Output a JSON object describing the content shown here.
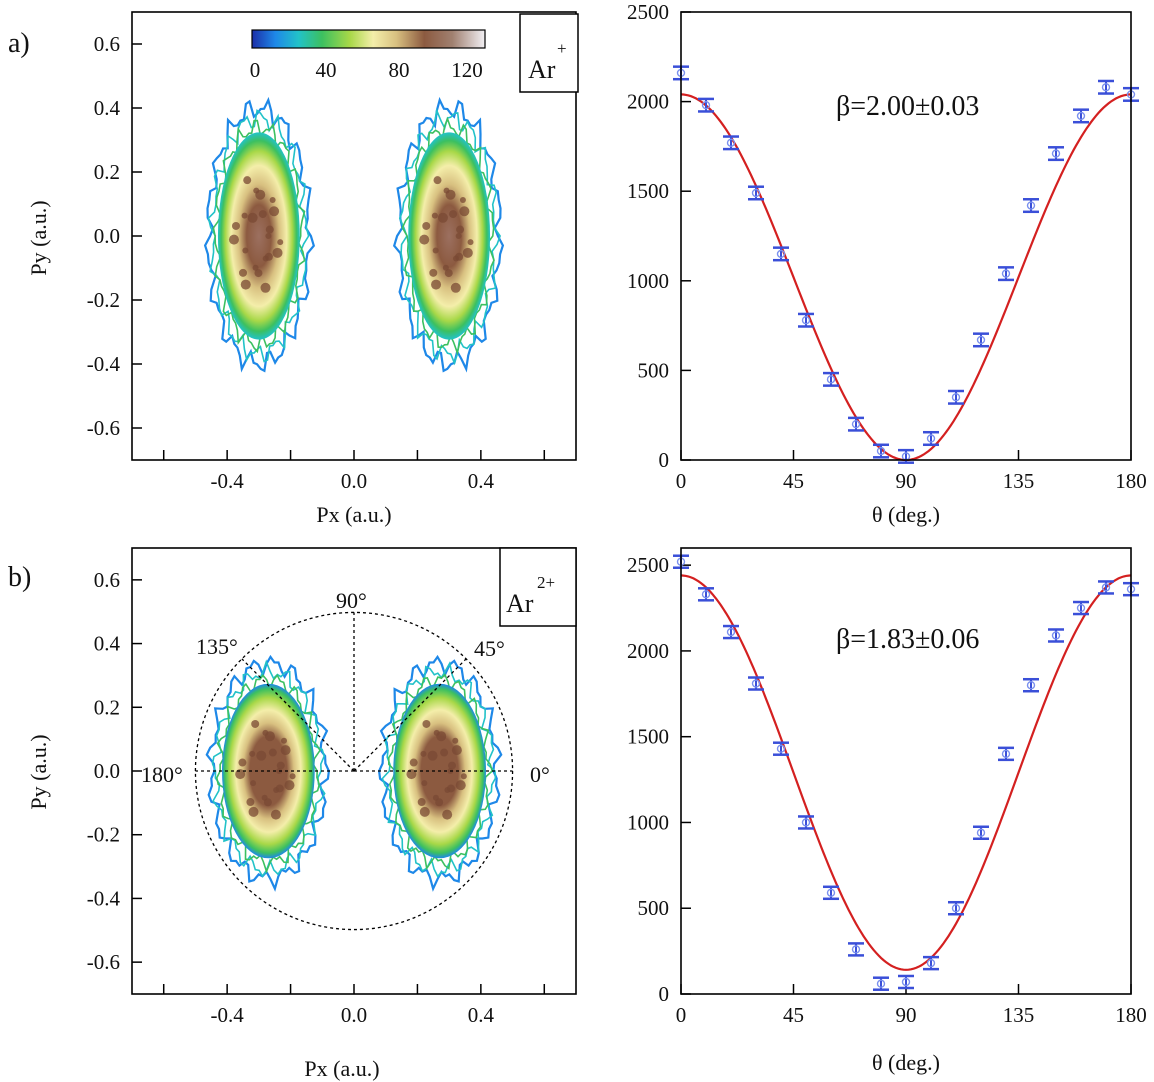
{
  "colors": {
    "fit": "#d42020",
    "data_point": "#3a4fd8",
    "colormap": [
      "#1c2ea8",
      "#1e88e8",
      "#22c2c8",
      "#3cc060",
      "#a8d848",
      "#f4eeaa",
      "#d8c080",
      "#8c5a40",
      "#a08070",
      "#f2f0f4"
    ]
  },
  "panels": {
    "a": {
      "label": "a)",
      "ion": "Ar",
      "charge": "+"
    },
    "b": {
      "label": "b)",
      "ion": "Ar",
      "charge": "2+"
    }
  },
  "colorbar": {
    "ticks": [
      "0",
      "40",
      "80",
      "120"
    ]
  },
  "polar_guides": [
    "0°",
    "45°",
    "90°",
    "135°",
    "180°"
  ],
  "chart_data": [
    {
      "id": "a-left",
      "type": "heatmap",
      "title": "",
      "xlabel": "Px (a.u.)",
      "ylabel": "Py (a.u.)",
      "xlim": [
        -0.7,
        0.7
      ],
      "ylim": [
        -0.7,
        0.7
      ],
      "xticks": [
        "-0.4",
        "0.0",
        "0.4"
      ],
      "yticks": [
        "0.6",
        "0.4",
        "0.2",
        "0.0",
        "-0.2",
        "-0.4",
        "-0.6"
      ],
      "colorbar_range": [
        0,
        130
      ],
      "lobes": [
        {
          "side": "left",
          "cx": -0.3,
          "cy": 0.0,
          "rx": 0.15,
          "ry": 0.38
        },
        {
          "side": "right",
          "cx": 0.3,
          "cy": 0.0,
          "rx": 0.15,
          "ry": 0.38
        }
      ]
    },
    {
      "id": "a-right",
      "type": "scatter",
      "title": "",
      "annotation": "β=2.00±0.03",
      "xlabel": "θ (deg.)",
      "ylabel": "",
      "xlim": [
        0,
        180
      ],
      "ylim": [
        0,
        2500
      ],
      "xticks": [
        "0",
        "45",
        "90",
        "135",
        "180"
      ],
      "yticks": [
        "2500",
        "2000",
        "1500",
        "1000",
        "500",
        "0"
      ],
      "x": [
        0,
        10,
        20,
        30,
        40,
        50,
        60,
        70,
        80,
        90,
        100,
        110,
        120,
        130,
        140,
        150,
        160,
        170,
        180
      ],
      "values": [
        2160,
        1980,
        1770,
        1490,
        1150,
        780,
        450,
        200,
        50,
        20,
        120,
        350,
        670,
        1040,
        1420,
        1710,
        1920,
        2080,
        2040
      ],
      "fit_peak": 2040,
      "beta": 2.0,
      "error": 35
    },
    {
      "id": "b-left",
      "type": "heatmap",
      "title": "",
      "xlabel": "Px (a.u.)",
      "ylabel": "Py (a.u.)",
      "xlim": [
        -0.7,
        0.7
      ],
      "ylim": [
        -0.7,
        0.7
      ],
      "xticks": [
        "-0.4",
        "0.0",
        "0.4"
      ],
      "yticks": [
        "0.6",
        "0.4",
        "0.2",
        "0.0",
        "-0.2",
        "-0.4",
        "-0.6"
      ],
      "guide_circle_radius": 0.5,
      "lobes": [
        {
          "side": "left",
          "cx": -0.27,
          "cy": 0.0,
          "rx": 0.17,
          "ry": 0.32
        },
        {
          "side": "right",
          "cx": 0.27,
          "cy": 0.0,
          "rx": 0.17,
          "ry": 0.32
        }
      ]
    },
    {
      "id": "b-right",
      "type": "scatter",
      "title": "",
      "annotation": "β=1.83±0.06",
      "xlabel": "θ (deg.)",
      "ylabel": "",
      "xlim": [
        0,
        180
      ],
      "ylim": [
        0,
        2600
      ],
      "xticks": [
        "0",
        "45",
        "90",
        "135",
        "180"
      ],
      "yticks": [
        "2500",
        "2000",
        "1500",
        "1000",
        "500",
        "0"
      ],
      "x": [
        0,
        10,
        20,
        30,
        40,
        50,
        60,
        70,
        80,
        90,
        100,
        110,
        120,
        130,
        140,
        150,
        160,
        170,
        180
      ],
      "values": [
        2520,
        2330,
        2110,
        1810,
        1430,
        1000,
        590,
        260,
        60,
        70,
        180,
        500,
        940,
        1400,
        1800,
        2090,
        2250,
        2370,
        2360
      ],
      "fit_peak": 2440,
      "fit_min": 70,
      "beta": 1.83,
      "error": 35
    }
  ]
}
